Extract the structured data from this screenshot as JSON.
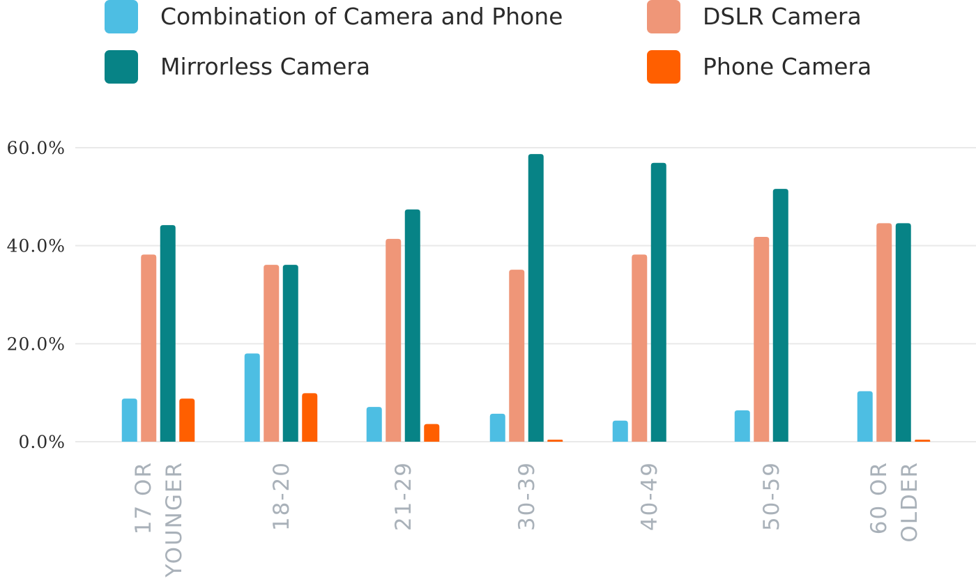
{
  "chart_data": {
    "type": "bar",
    "title": "",
    "xlabel": "",
    "ylabel": "",
    "ylim": [
      0,
      60
    ],
    "y_ticks": [
      0,
      20,
      40,
      60
    ],
    "y_tick_labels": [
      "0.0%",
      "20.0%",
      "40.0%",
      "60.0%"
    ],
    "grid": true,
    "legend_position": "top",
    "categories": [
      [
        "17 OR",
        "YOUNGER"
      ],
      [
        "18-20"
      ],
      [
        "21-29"
      ],
      [
        "30-39"
      ],
      [
        "40-49"
      ],
      [
        "50-59"
      ],
      [
        "60 OR",
        "OLDER"
      ]
    ],
    "series": [
      {
        "name": "Combination of Camera and Phone",
        "color": "#4dbee3",
        "values": [
          8.8,
          18.0,
          7.1,
          5.7,
          4.3,
          6.4,
          10.3
        ]
      },
      {
        "name": "DSLR Camera",
        "color": "#ef9678",
        "values": [
          38.2,
          36.1,
          41.4,
          35.1,
          38.2,
          41.8,
          44.6
        ]
      },
      {
        "name": "Mirrorless Camera",
        "color": "#078386",
        "values": [
          44.2,
          36.1,
          47.4,
          58.7,
          56.9,
          51.6,
          44.6
        ]
      },
      {
        "name": "Phone Camera",
        "color": "#ff5f00",
        "values": [
          8.8,
          9.9,
          3.6,
          0.4,
          0,
          0,
          0.4
        ]
      }
    ]
  }
}
